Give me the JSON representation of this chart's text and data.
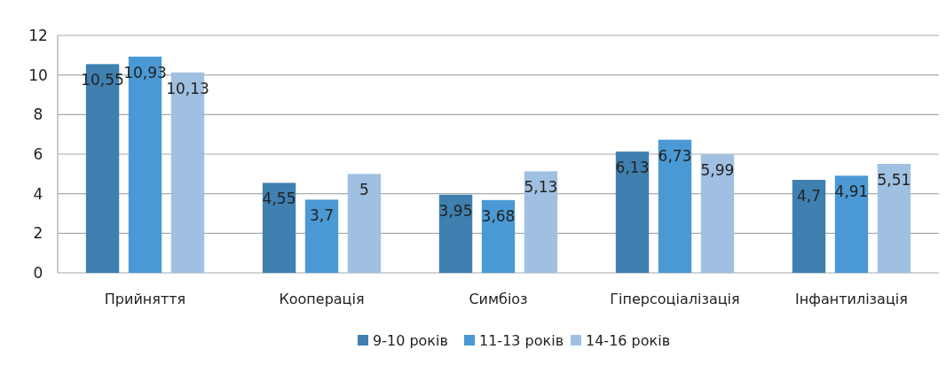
{
  "chart_data": {
    "type": "bar",
    "categories": [
      "Прийняття",
      "Кооперація",
      "Симбіоз",
      "Гіперсоціалізація",
      "Інфантилізація"
    ],
    "series": [
      {
        "name": "9-10 років",
        "color": "#3f80b1",
        "values": [
          10.55,
          4.55,
          3.95,
          6.13,
          4.7
        ],
        "value_labels": [
          "10,55",
          "4,55",
          "3,95",
          "6,13",
          "4,7"
        ]
      },
      {
        "name": "11-13 років",
        "color": "#4b99d4",
        "values": [
          10.93,
          3.7,
          3.68,
          6.73,
          4.91
        ],
        "value_labels": [
          "10,93",
          "3,7",
          "3,68",
          "6,73",
          "4,91"
        ]
      },
      {
        "name": "14-16 років",
        "color": "#a0c0e2",
        "values": [
          10.13,
          5,
          5.13,
          5.99,
          5.51
        ],
        "value_labels": [
          "10,13",
          "5",
          "5,13",
          "5,99",
          "5,51"
        ]
      }
    ],
    "ylim": [
      0,
      12
    ],
    "yticks": [
      0,
      2,
      4,
      6,
      8,
      10,
      12
    ],
    "grid": "y",
    "legend": "bottom"
  }
}
